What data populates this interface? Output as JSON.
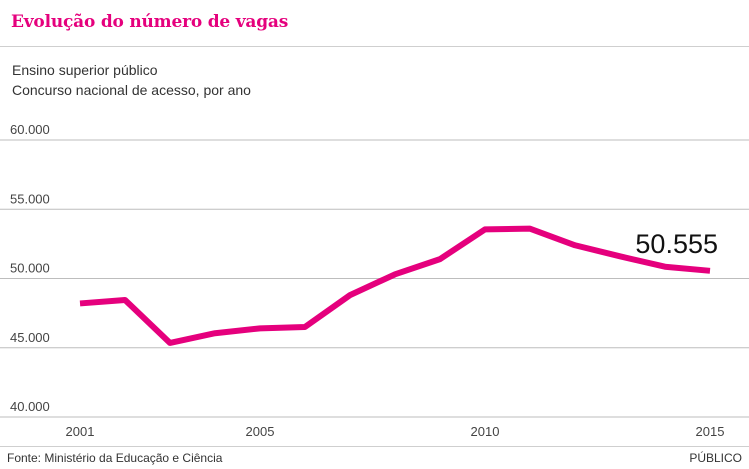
{
  "header": {
    "title": "Evolução do número de vagas",
    "subtitle_line1": "Ensino superior público",
    "subtitle_line2": "Concurso nacional de acesso, por ano"
  },
  "footer": {
    "source": "Fonte: Ministério da Educação e Ciência",
    "brand": "PÚBLICO"
  },
  "colors": {
    "accent": "#e5007d",
    "grid": "#bdbdbd"
  },
  "chart_data": {
    "type": "line",
    "title": "Evolução do número de vagas",
    "subtitle": "Ensino superior público — Concurso nacional de acesso, por ano",
    "xlabel": "",
    "ylabel": "",
    "x": [
      2001,
      2002,
      2003,
      2004,
      2005,
      2006,
      2007,
      2008,
      2009,
      2010,
      2011,
      2012,
      2013,
      2014,
      2015
    ],
    "series": [
      {
        "values": [
          48200,
          48450,
          45350,
          46050,
          46400,
          46500,
          48800,
          50300,
          51400,
          53550,
          53600,
          52400,
          51600,
          50850,
          50555
        ]
      }
    ],
    "xlim": [
      2001,
      2015
    ],
    "ylim": [
      40000,
      60000
    ],
    "y_ticks": [
      40000,
      45000,
      50000,
      55000,
      60000
    ],
    "y_tick_labels": [
      "40.000",
      "45.000",
      "50.000",
      "55.000",
      "60.000"
    ],
    "x_ticks": [
      2001,
      2005,
      2010,
      2015
    ],
    "x_tick_labels": [
      "2001",
      "2005",
      "2010",
      "2015"
    ],
    "end_label": "50.555",
    "grid": true,
    "legend": "none"
  }
}
